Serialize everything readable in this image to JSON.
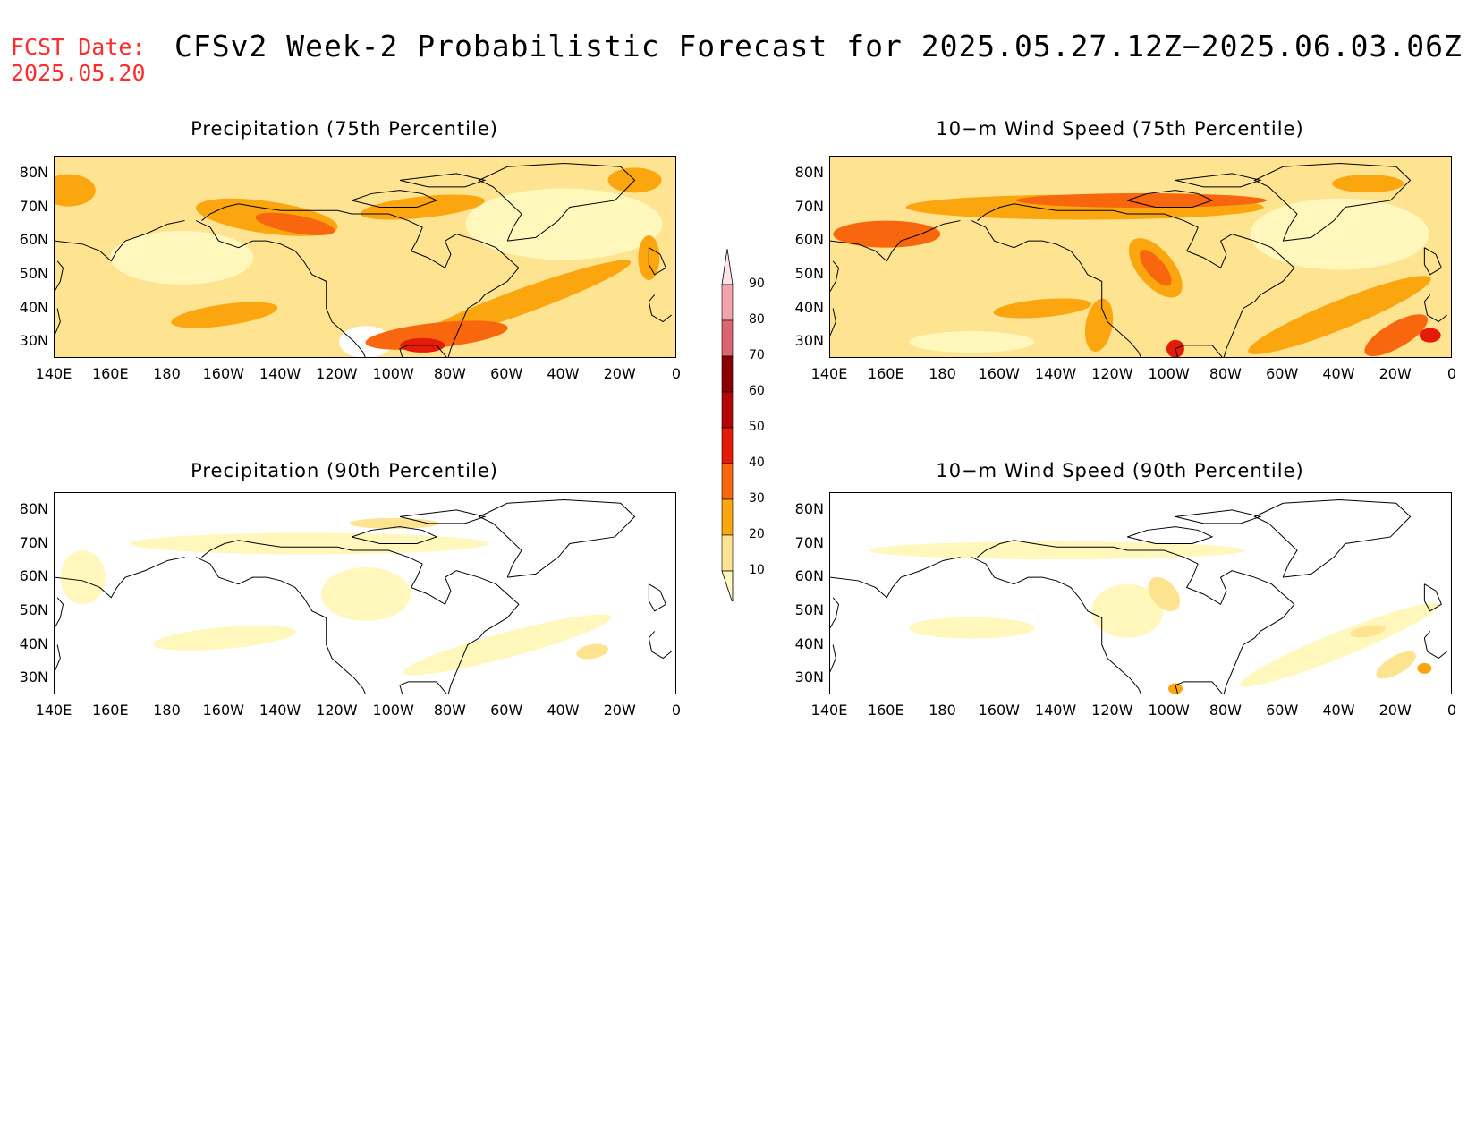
{
  "fcst": {
    "line1": "FCST Date:",
    "line2": "2025.05.20"
  },
  "title": "CFSv2 Week-2 Probabilistic Forecast for 2025.05.27.12Z−2025.06.03.06Z",
  "lat_labels": [
    "80N",
    "70N",
    "60N",
    "50N",
    "40N",
    "30N"
  ],
  "lon_labels": [
    "140E",
    "160E",
    "180",
    "160W",
    "140W",
    "120W",
    "100W",
    "80W",
    "60W",
    "40W",
    "20W",
    "0"
  ],
  "panels": [
    {
      "id": "p75",
      "title": "Precipitation (75th Percentile)"
    },
    {
      "id": "w75",
      "title": "10−m Wind Speed (75th Percentile)"
    },
    {
      "id": "p90",
      "title": "Precipitation (90th Percentile)"
    },
    {
      "id": "w90",
      "title": "10−m Wind Speed (90th Percentile)"
    }
  ],
  "legend": {
    "levels": [
      "90",
      "80",
      "70",
      "60",
      "50",
      "40",
      "30",
      "20",
      "10"
    ],
    "colors": {
      "c10": "#fff7bc",
      "c20": "#fee391",
      "c30": "#fba60f",
      "c40": "#f8660e",
      "c50": "#e51b0a",
      "c60": "#b60505",
      "c70": "#8b0000",
      "c80": "#dc6570",
      "c90": "#f2a3ac",
      "c100": "#fde3e6"
    }
  }
}
